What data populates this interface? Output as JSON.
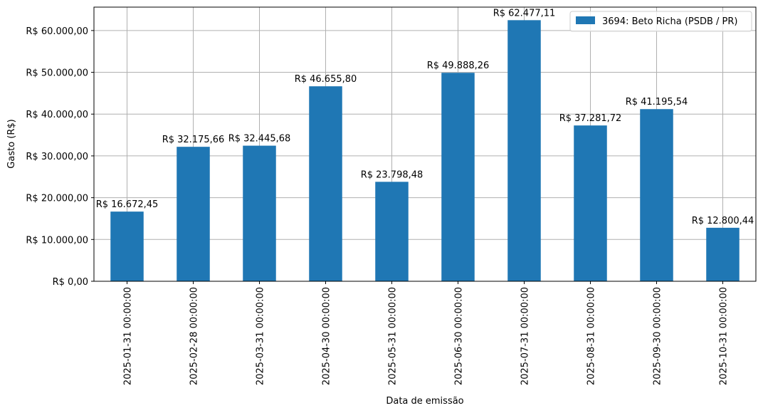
{
  "chart_data": {
    "type": "bar",
    "categories": [
      "2025-01-31 00:00:00",
      "2025-02-28 00:00:00",
      "2025-03-31 00:00:00",
      "2025-04-30 00:00:00",
      "2025-05-31 00:00:00",
      "2025-06-30 00:00:00",
      "2025-07-31 00:00:00",
      "2025-08-31 00:00:00",
      "2025-09-30 00:00:00",
      "2025-10-31 00:00:00"
    ],
    "series": [
      {
        "name": "3694: Beto Richa (PSDB / PR)",
        "values": [
          16672.45,
          32175.66,
          32445.68,
          46655.8,
          23798.48,
          49888.26,
          62477.11,
          37281.72,
          41195.54,
          12800.44
        ],
        "labels": [
          "R$ 16.672,45",
          "R$ 32.175,66",
          "R$ 32.445,68",
          "R$ 46.655,80",
          "R$ 23.798,48",
          "R$ 49.888,26",
          "R$ 62.477,11",
          "R$ 37.281,72",
          "R$ 41.195,54",
          "R$ 12.800,44"
        ],
        "color": "#1f77b4"
      }
    ],
    "xlabel": "Data de emissão",
    "ylabel": "Gasto (R$)",
    "ylim": [
      0,
      65600
    ],
    "yticks": [
      0,
      10000,
      20000,
      30000,
      40000,
      50000,
      60000
    ],
    "ytick_labels": [
      "R$ 0,00",
      "R$ 10.000,00",
      "R$ 20.000,00",
      "R$ 30.000,00",
      "R$ 40.000,00",
      "R$ 50.000,00",
      "R$ 60.000,00"
    ],
    "grid": true,
    "legend_position": "top-right"
  }
}
